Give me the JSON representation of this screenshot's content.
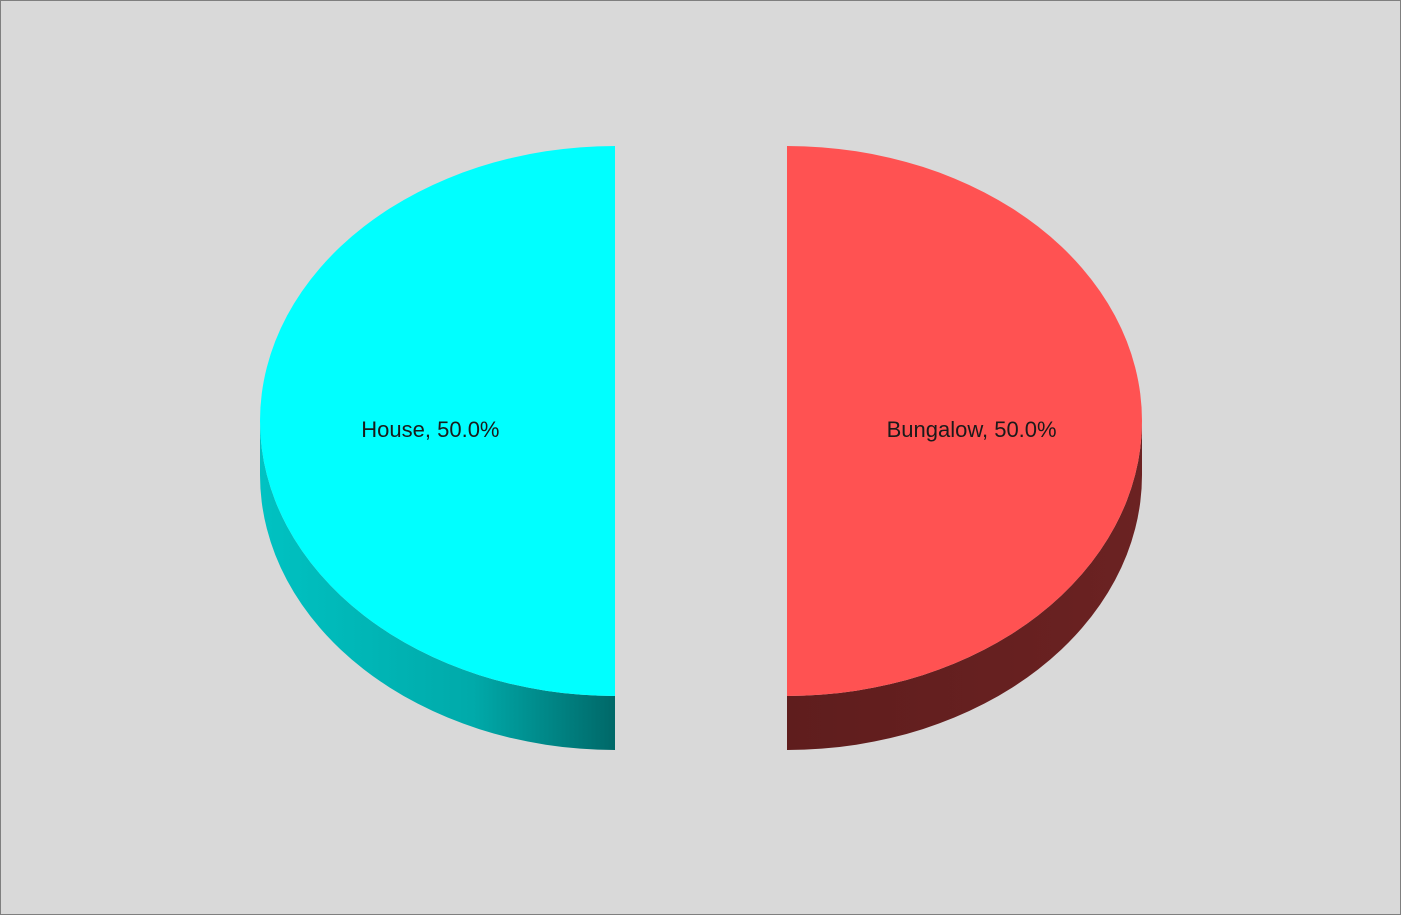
{
  "chart_data": {
    "type": "pie",
    "title": "",
    "style": "3d-exploded",
    "legend": "none",
    "slices": [
      {
        "name": "Bungalow",
        "value": 50.0,
        "label": "Bungalow, 50.0%",
        "color": "#ff5252",
        "side_color": "#641e1e"
      },
      {
        "name": "House",
        "value": 50.0,
        "label": "House, 50.0%",
        "color": "#00ffff",
        "side_color": "#00a9a9"
      }
    ]
  }
}
